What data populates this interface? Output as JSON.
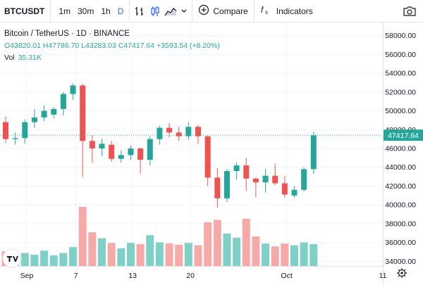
{
  "toolbar": {
    "symbol": "BTCUSDT",
    "intervals": [
      "1m",
      "30m",
      "1h",
      "D"
    ],
    "active_interval": "D",
    "compare_label": "Compare",
    "indicators_label": "Indicators",
    "icons": [
      "bar-chart-icon",
      "candles-icon",
      "area-chart-icon",
      "chevron-down-icon",
      "plus-circle-icon",
      "fx-icon",
      "camera-icon"
    ]
  },
  "legend": {
    "title": "Bitcoin / TetherUS · 1D · BINANCE",
    "ohlc": "O43820.01 H47786.70 L43283.03 C47417.64 +3593.54 (+8.20%)",
    "vol_label": "Vol",
    "vol_value": "35.31K"
  },
  "colors": {
    "up": "#26a69a",
    "down": "#ef5350",
    "up_volume": "#7fd0c7",
    "down_volume": "#f7a9a7",
    "grid": "#f0f3fa",
    "price_line": "#26a69a"
  },
  "last_price_label": "47417.64",
  "chart_data": {
    "type": "candlestick",
    "y_ticks": [
      "58000.00",
      "56000.00",
      "54000.00",
      "52000.00",
      "50000.00",
      "48000.00",
      "46000.00",
      "44000.00",
      "42000.00",
      "40000.00",
      "38000.00",
      "36000.00",
      "34000.00"
    ],
    "ylim": [
      33500,
      59400
    ],
    "x_ticks": [
      "Sep",
      "7",
      "13",
      "20",
      "Oct",
      "11"
    ],
    "last_price": 47417.64,
    "candles": [
      {
        "o": 48800,
        "h": 49400,
        "l": 46600,
        "c": 47000
      },
      {
        "o": 47000,
        "h": 47700,
        "l": 46400,
        "c": 47100
      },
      {
        "o": 47100,
        "h": 49100,
        "l": 46500,
        "c": 48800
      },
      {
        "o": 48800,
        "h": 50200,
        "l": 48200,
        "c": 49300
      },
      {
        "o": 49300,
        "h": 50600,
        "l": 48900,
        "c": 50000
      },
      {
        "o": 49600,
        "h": 50400,
        "l": 49200,
        "c": 50200
      },
      {
        "o": 50200,
        "h": 52000,
        "l": 49500,
        "c": 51800
      },
      {
        "o": 51800,
        "h": 52900,
        "l": 51200,
        "c": 52700
      },
      {
        "o": 52700,
        "h": 52900,
        "l": 43000,
        "c": 46800
      },
      {
        "o": 46800,
        "h": 47400,
        "l": 44500,
        "c": 46000
      },
      {
        "o": 46000,
        "h": 47000,
        "l": 45200,
        "c": 46500
      },
      {
        "o": 46400,
        "h": 46800,
        "l": 44600,
        "c": 44900
      },
      {
        "o": 44900,
        "h": 45800,
        "l": 44500,
        "c": 45300
      },
      {
        "o": 45300,
        "h": 46300,
        "l": 44800,
        "c": 46000
      },
      {
        "o": 46000,
        "h": 46100,
        "l": 43300,
        "c": 44800
      },
      {
        "o": 44800,
        "h": 47300,
        "l": 44200,
        "c": 47000
      },
      {
        "o": 47000,
        "h": 48400,
        "l": 46400,
        "c": 48200
      },
      {
        "o": 48200,
        "h": 48700,
        "l": 47200,
        "c": 47700
      },
      {
        "o": 47700,
        "h": 48300,
        "l": 46800,
        "c": 47300
      },
      {
        "o": 47300,
        "h": 48800,
        "l": 46900,
        "c": 48300
      },
      {
        "o": 48300,
        "h": 48500,
        "l": 46500,
        "c": 47300
      },
      {
        "o": 47300,
        "h": 47400,
        "l": 42000,
        "c": 42900
      },
      {
        "o": 42900,
        "h": 43900,
        "l": 39700,
        "c": 40700
      },
      {
        "o": 40700,
        "h": 43800,
        "l": 40300,
        "c": 43600
      },
      {
        "o": 43600,
        "h": 44500,
        "l": 42700,
        "c": 44200
      },
      {
        "o": 44200,
        "h": 45000,
        "l": 41500,
        "c": 42800
      },
      {
        "o": 42800,
        "h": 42900,
        "l": 40800,
        "c": 42400
      },
      {
        "o": 42400,
        "h": 43800,
        "l": 41300,
        "c": 43100
      },
      {
        "o": 43100,
        "h": 44400,
        "l": 42100,
        "c": 42300
      },
      {
        "o": 42300,
        "h": 43100,
        "l": 40800,
        "c": 41100
      },
      {
        "o": 41000,
        "h": 42000,
        "l": 40800,
        "c": 41600
      },
      {
        "o": 41600,
        "h": 44000,
        "l": 41400,
        "c": 43800
      },
      {
        "o": 43800,
        "h": 47800,
        "l": 43300,
        "c": 47400
      }
    ],
    "volumes": [
      25,
      20,
      22,
      19,
      26,
      18,
      22,
      32,
      100,
      57,
      47,
      39,
      30,
      39,
      37,
      52,
      40,
      38,
      36,
      39,
      35,
      74,
      78,
      55,
      48,
      80,
      50,
      38,
      33,
      38,
      35,
      40,
      37
    ]
  }
}
